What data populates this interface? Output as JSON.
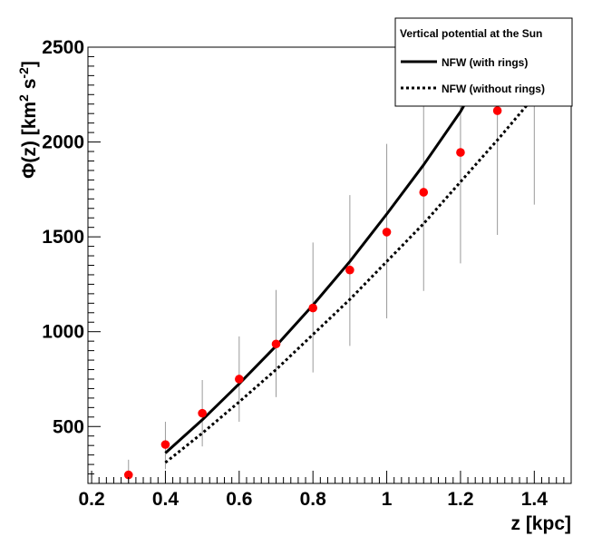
{
  "chart_data": {
    "type": "line",
    "xlabel": "z [kpc]",
    "ylabel": "Φ(z) [km² s⁻²]",
    "ylabel_parts": {
      "main": "Φ(z) [km",
      "sup1": "2",
      "mid": " s",
      "sup2": "-2",
      "end": "]"
    },
    "xlim": [
      0.19,
      1.5
    ],
    "ylim": [
      200,
      2500
    ],
    "x_ticks": [
      0.2,
      0.4,
      0.6,
      0.8,
      1,
      1.2,
      1.4
    ],
    "x_tick_labels": [
      "0.2",
      "0.4",
      "0.6",
      "0.8",
      "1",
      "1.2",
      "1.4"
    ],
    "y_ticks": [
      500,
      1000,
      1500,
      2000,
      2500
    ],
    "y_tick_labels": [
      "500",
      "1000",
      "1500",
      "2000",
      "2500"
    ],
    "grid": false,
    "legend": {
      "title": "Vertical potential at the Sun",
      "placement": "top-right",
      "entries": [
        "NFW (with rings)",
        "NFW (without rings)"
      ]
    },
    "series": [
      {
        "name": "NFW (with rings)",
        "style": "solid",
        "color": "#000000",
        "x": [
          0.4,
          0.5,
          0.6,
          0.7,
          0.8,
          0.9,
          1.0,
          1.1,
          1.2,
          1.3
        ],
        "y": [
          360,
          535,
          725,
          925,
          1140,
          1370,
          1620,
          1880,
          2160,
          2500
        ]
      },
      {
        "name": "NFW (without rings)",
        "style": "dotted",
        "color": "#000000",
        "x": [
          0.4,
          0.5,
          0.6,
          0.7,
          0.8,
          0.9,
          1.0,
          1.1,
          1.2,
          1.3,
          1.4
        ],
        "y": [
          310,
          465,
          630,
          800,
          985,
          1170,
          1370,
          1570,
          1790,
          2010,
          2240
        ]
      }
    ],
    "points": {
      "color": "#ff0000",
      "x": [
        0.3,
        0.4,
        0.5,
        0.6,
        0.7,
        0.8,
        0.9,
        1.0,
        1.1,
        1.2,
        1.3
      ],
      "y": [
        245,
        405,
        570,
        750,
        935,
        1125,
        1325,
        1525,
        1735,
        1945,
        2165
      ],
      "err_low": [
        80,
        130,
        175,
        225,
        280,
        340,
        400,
        455,
        520,
        585,
        655
      ],
      "err_high": [
        80,
        120,
        175,
        225,
        285,
        345,
        395,
        465,
        525,
        585,
        655
      ]
    },
    "extra_errorbar": {
      "x": 1.4,
      "y_low": 1670,
      "y_high": 2400
    }
  }
}
